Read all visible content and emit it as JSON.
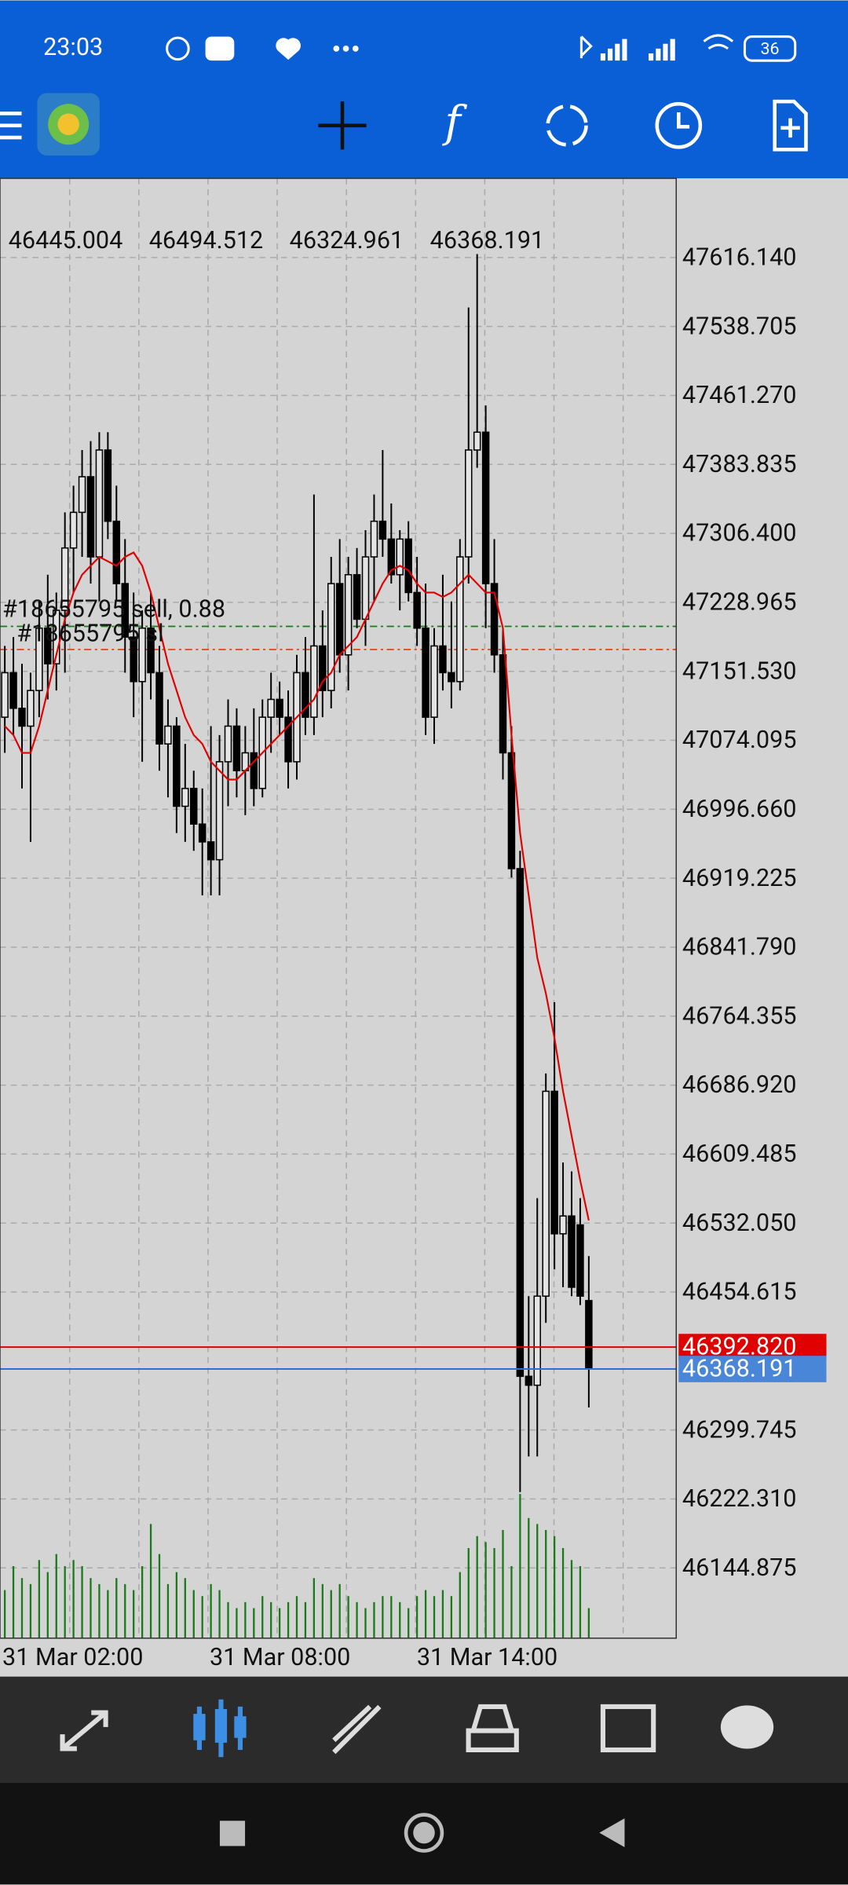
{
  "status_bar": {
    "time": "23:03",
    "battery": "36"
  },
  "chart_data": {
    "type": "candlestick",
    "ohlc_header": [
      46445.004,
      46494.512,
      46324.961,
      46368.191
    ],
    "ylim": [
      46066,
      47705
    ],
    "yticks": [
      {
        "value": 47616.14,
        "label": "47616.140"
      },
      47538.705,
      {
        "value": 47461.27,
        "label": "47461.270"
      },
      47383.835,
      {
        "value": 47306.4,
        "label": "47306.400"
      },
      47228.965,
      {
        "value": 47151.53,
        "label": "47151.530"
      },
      47074.095,
      {
        "value": 46996.66,
        "label": "46996.660"
      },
      46919.225,
      {
        "value": 46841.79,
        "label": "46841.790"
      },
      46764.355,
      {
        "value": 46686.92,
        "label": "46686.920"
      },
      46609.485,
      {
        "value": 46532.05,
        "label": "46532.050"
      },
      46454.615,
      46299.745,
      {
        "value": 46222.31,
        "label": "46222.310"
      },
      46144.875
    ],
    "x_labels": [
      "31 Mar 02:00",
      "31 Mar 08:00",
      "31 Mar 14:00"
    ],
    "grid": true,
    "open": [
      47100,
      47150,
      47110,
      47090,
      47130,
      47200,
      47160,
      47220,
      47290,
      47330,
      47370,
      47280,
      47400,
      47320,
      47250,
      47190,
      47140,
      47200,
      47150,
      47070,
      47090,
      47000,
      47020,
      46980,
      46960,
      46940,
      47050,
      47090,
      47040,
      47060,
      47020,
      47100,
      47120,
      47100,
      47050,
      47150,
      47100,
      47180,
      47130,
      47250,
      47170,
      47260,
      47210,
      47280,
      47320,
      47300,
      47260,
      47300,
      47240,
      47200,
      47100,
      47180,
      47150,
      47140,
      47280,
      47400,
      47420,
      47250,
      47170,
      47060,
      46930,
      46360,
      46350,
      46450,
      46680,
      46520,
      46540,
      46530,
      46445
    ],
    "high": [
      47180,
      47190,
      47160,
      47150,
      47230,
      47260,
      47240,
      47330,
      47360,
      47400,
      47410,
      47420,
      47420,
      47360,
      47300,
      47240,
      47220,
      47240,
      47180,
      47120,
      47100,
      47070,
      47040,
      47020,
      47090,
      47080,
      47120,
      47110,
      47090,
      47110,
      47120,
      47150,
      47140,
      47130,
      47170,
      47190,
      47350,
      47220,
      47280,
      47300,
      47280,
      47290,
      47310,
      47350,
      47400,
      47340,
      47310,
      47320,
      47280,
      47250,
      47200,
      47260,
      47230,
      47300,
      47560,
      47620,
      47450,
      47300,
      47200,
      47090,
      46950,
      46450,
      46560,
      46700,
      46780,
      46600,
      46590,
      46560,
      46495
    ],
    "low": [
      47060,
      47080,
      47020,
      46960,
      47100,
      47120,
      47130,
      47150,
      47240,
      47280,
      47250,
      47230,
      47300,
      47230,
      47150,
      47100,
      47050,
      47120,
      47040,
      47010,
      46970,
      46960,
      46950,
      46900,
      46900,
      46900,
      47000,
      47010,
      46990,
      47000,
      47010,
      47060,
      47080,
      47020,
      47030,
      47080,
      47080,
      47100,
      47110,
      47150,
      47130,
      47200,
      47180,
      47230,
      47280,
      47250,
      47220,
      47230,
      47180,
      47080,
      47070,
      47130,
      47110,
      47130,
      47250,
      47380,
      47200,
      47150,
      47030,
      46920,
      46230,
      46270,
      46270,
      46420,
      46480,
      46460,
      46450,
      46440,
      46325
    ],
    "close": [
      47150,
      47110,
      47090,
      47130,
      47200,
      47160,
      47220,
      47290,
      47330,
      47370,
      47280,
      47400,
      47320,
      47250,
      47190,
      47140,
      47200,
      47150,
      47070,
      47090,
      47000,
      47020,
      46980,
      46960,
      46940,
      47050,
      47090,
      47040,
      47060,
      47020,
      47100,
      47120,
      47100,
      47050,
      47150,
      47100,
      47180,
      47130,
      47250,
      47170,
      47260,
      47210,
      47280,
      47320,
      47300,
      47260,
      47300,
      47240,
      47200,
      47100,
      47180,
      47150,
      47140,
      47280,
      47400,
      47420,
      47250,
      47170,
      47060,
      46930,
      46360,
      46350,
      46450,
      46680,
      46520,
      46540,
      46460,
      46450,
      46368.191
    ],
    "ma": {
      "color": "#e00000",
      "values": [
        47090,
        47080,
        47060,
        47060,
        47090,
        47130,
        47170,
        47210,
        47240,
        47260,
        47270,
        47280,
        47275,
        47270,
        47280,
        47285,
        47270,
        47240,
        47200,
        47160,
        47130,
        47100,
        47080,
        47070,
        47050,
        47040,
        47030,
        47030,
        47040,
        47050,
        47060,
        47070,
        47080,
        47090,
        47100,
        47110,
        47120,
        47140,
        47150,
        47170,
        47180,
        47190,
        47210,
        47230,
        47250,
        47265,
        47270,
        47265,
        47250,
        47240,
        47240,
        47235,
        47240,
        47250,
        47260,
        47250,
        47240,
        47240,
        47200,
        47080,
        46970,
        46900,
        46830,
        46790,
        46740,
        46680,
        46630,
        46580,
        46535
      ]
    },
    "volume": {
      "color": "#1a7a1a",
      "values": [
        40,
        60,
        50,
        45,
        65,
        55,
        70,
        60,
        65,
        60,
        50,
        45,
        40,
        50,
        45,
        40,
        60,
        95,
        70,
        45,
        55,
        50,
        40,
        35,
        45,
        40,
        30,
        25,
        30,
        25,
        35,
        30,
        25,
        30,
        35,
        30,
        50,
        45,
        40,
        45,
        35,
        30,
        25,
        30,
        35,
        35,
        30,
        25,
        35,
        40,
        35,
        40,
        35,
        55,
        75,
        85,
        80,
        75,
        90,
        60,
        120,
        100,
        95,
        90,
        85,
        75,
        65,
        60,
        25
      ]
    },
    "volume_lim": [
      0,
      130
    ],
    "orders": [
      {
        "value": 47202,
        "color": "#1a7a1a",
        "text": "#18655795 sell, 0.88"
      },
      {
        "value": 47176,
        "color": "#e05020",
        "text": "#18655795 sl"
      }
    ],
    "price_lines": [
      {
        "value": 46392.82,
        "label": "46392.820",
        "color": "#e00000",
        "box": "#e00000"
      },
      {
        "value": 46368.191,
        "color": "#2f6fd0",
        "box": "#4a86d8"
      }
    ]
  }
}
